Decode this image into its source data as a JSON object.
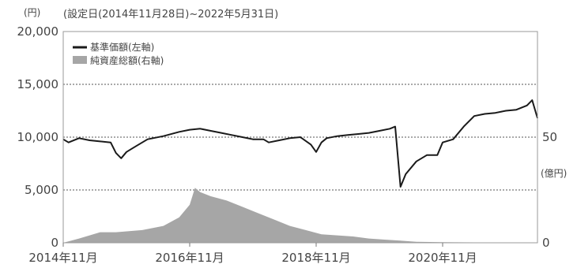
{
  "chart_data": {
    "type": "line",
    "subtitle": "(設定日(2014年11月28日)~2022年5月31日)",
    "y_left": {
      "unit": "(円)",
      "ylim": [
        0,
        20000
      ],
      "ticks": [
        0,
        5000,
        10000,
        15000,
        20000
      ],
      "tick_labels": [
        "0",
        "5,000",
        "10,000",
        "15,000",
        "20,000"
      ]
    },
    "y_right": {
      "unit": "(億円)",
      "ylim": [
        0,
        100
      ],
      "ticks": [
        0,
        50
      ],
      "tick_labels": [
        "0",
        "50"
      ]
    },
    "x_axis": {
      "range": [
        "2014-11",
        "2022-05"
      ],
      "ticks": [
        "2014-11",
        "2016-11",
        "2018-11",
        "2020-11"
      ],
      "tick_labels": [
        "2014年11月",
        "2016年11月",
        "2018年11月",
        "2020年11月"
      ]
    },
    "grid": {
      "horizontal": true,
      "dashed": true,
      "vertical": false
    },
    "legend_position": "top-left",
    "series": [
      {
        "name": "基準価額(左軸)",
        "axis": "left",
        "style": "line",
        "color": "#1a1a1a",
        "x": [
          "2014-11",
          "2014-12",
          "2015-02",
          "2015-04",
          "2015-06",
          "2015-08",
          "2015-09",
          "2015-10",
          "2015-11",
          "2015-12",
          "2016-01",
          "2016-02",
          "2016-03",
          "2016-06",
          "2016-09",
          "2016-11",
          "2017-01",
          "2017-03",
          "2017-05",
          "2017-07",
          "2017-09",
          "2017-11",
          "2018-01",
          "2018-02",
          "2018-04",
          "2018-06",
          "2018-08",
          "2018-10",
          "2018-11",
          "2018-12",
          "2019-01",
          "2019-03",
          "2019-05",
          "2019-07",
          "2019-09",
          "2019-11",
          "2020-01",
          "2020-02",
          "2020-03",
          "2020-04",
          "2020-06",
          "2020-08",
          "2020-10",
          "2020-11",
          "2021-01",
          "2021-03",
          "2021-05",
          "2021-07",
          "2021-09",
          "2021-11",
          "2022-01",
          "2022-03",
          "2022-04",
          "2022-05"
        ],
        "values": [
          9800,
          9500,
          9900,
          9700,
          9600,
          9500,
          8500,
          8000,
          8600,
          8900,
          9200,
          9500,
          9800,
          10100,
          10500,
          10700,
          10800,
          10600,
          10400,
          10200,
          10000,
          9800,
          9800,
          9500,
          9700,
          9900,
          10000,
          9300,
          8600,
          9500,
          9900,
          10100,
          10200,
          10300,
          10400,
          10600,
          10800,
          11000,
          5300,
          6500,
          7700,
          8300,
          8300,
          9500,
          9800,
          11000,
          12000,
          12200,
          12300,
          12500,
          12600,
          13000,
          13500,
          11800
        ]
      },
      {
        "name": "純資産総額(右軸)",
        "axis": "right",
        "style": "area",
        "color": "#a6a6a6",
        "x": [
          "2014-11",
          "2015-02",
          "2015-06",
          "2015-09",
          "2016-02",
          "2016-06",
          "2016-09",
          "2016-11",
          "2016-12",
          "2017-01",
          "2017-03",
          "2017-06",
          "2017-09",
          "2017-12",
          "2018-03",
          "2018-06",
          "2018-09",
          "2018-12",
          "2019-03",
          "2019-06",
          "2019-09",
          "2019-12",
          "2020-03",
          "2020-06",
          "2020-11",
          "2021-05",
          "2022-05"
        ],
        "values": [
          0,
          2,
          5,
          5,
          6,
          8,
          12,
          18,
          26,
          24,
          22,
          20,
          17,
          14,
          11,
          8,
          6,
          4,
          3.5,
          3,
          2,
          1.5,
          1,
          0.5,
          0.3,
          0.2,
          0.1
        ]
      }
    ]
  }
}
